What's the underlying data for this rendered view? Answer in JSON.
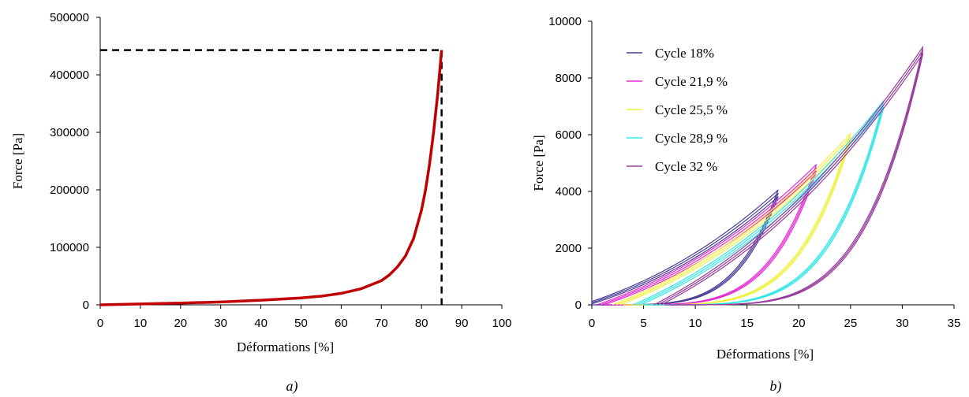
{
  "chart_data": [
    {
      "id": "a",
      "type": "line",
      "caption": "a)",
      "xlabel": "Déformations [%]",
      "ylabel": "Force [Pa]",
      "xlim": [
        0,
        100
      ],
      "ylim": [
        0,
        500000
      ],
      "xticks": [
        0,
        10,
        20,
        30,
        40,
        50,
        60,
        70,
        80,
        90,
        100
      ],
      "yticks": [
        0,
        100000,
        200000,
        300000,
        400000,
        500000
      ],
      "grid": false,
      "series": [
        {
          "color": "#c00000",
          "x": [
            0,
            10,
            20,
            30,
            40,
            50,
            55,
            60,
            65,
            70,
            72,
            74,
            76,
            78,
            80,
            81,
            82,
            83,
            84,
            85
          ],
          "y": [
            0,
            1500,
            3000,
            5000,
            8000,
            12000,
            15000,
            20000,
            28000,
            42000,
            52000,
            66000,
            85000,
            115000,
            165000,
            200000,
            245000,
            300000,
            365000,
            443000
          ]
        }
      ],
      "reference_lines": [
        {
          "orientation": "horizontal",
          "value": 443000,
          "x_range": [
            0,
            85
          ],
          "style": "dashed"
        },
        {
          "orientation": "vertical",
          "value": 85,
          "y_range": [
            0,
            443000
          ],
          "style": "dashed"
        }
      ]
    },
    {
      "id": "b",
      "type": "line",
      "caption": "b)",
      "xlabel": "Déformations [%]",
      "ylabel": "Force [Pa]",
      "xlim": [
        0,
        35
      ],
      "ylim": [
        0,
        10000
      ],
      "xticks": [
        0,
        5,
        10,
        15,
        20,
        25,
        30,
        35
      ],
      "yticks": [
        0,
        2000,
        4000,
        6000,
        8000,
        10000
      ],
      "grid": false,
      "legend_position": "top-left",
      "series": [
        {
          "name": "Cycle 18%",
          "color": "#4b3c96",
          "max_x": 18,
          "max_y": 4050,
          "min_x": 0,
          "loops": 3
        },
        {
          "name": "Cycle 21,9 %",
          "color": "#e62ad2",
          "max_x": 21.7,
          "max_y": 4950,
          "min_x": 1.5,
          "loops": 3
        },
        {
          "name": "Cycle 25,5 %",
          "color": "#f0f03c",
          "max_x": 25,
          "max_y": 6050,
          "min_x": 3,
          "loops": 3
        },
        {
          "name": "Cycle 28,9 %",
          "color": "#32e6e6",
          "max_x": 28.2,
          "max_y": 7200,
          "min_x": 5,
          "loops": 3
        },
        {
          "name": "Cycle 32 %",
          "color": "#963c9b",
          "max_x": 32,
          "max_y": 9100,
          "min_x": 7,
          "loops": 3
        }
      ]
    }
  ]
}
